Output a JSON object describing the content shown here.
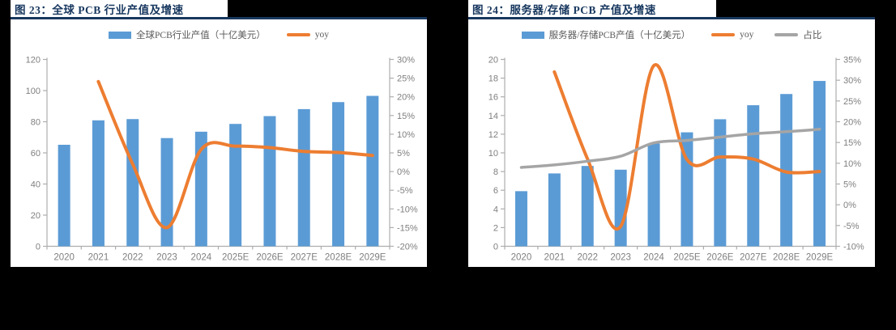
{
  "colors": {
    "bar_blue": "#5B9BD5",
    "line_orange": "#ED7D31",
    "line_gray": "#A5A5A5",
    "title_navy": "#17375E",
    "axis_text": "#7F7F7F",
    "axis_line": "#ADADAD",
    "page_backdrop": "#000000",
    "panel_bg": "#FFFFFF"
  },
  "chart_data": [
    {
      "type": "bar+line",
      "title": "图 23：全球 PCB 行业产值及增速",
      "categories": [
        "2020",
        "2021",
        "2022",
        "2023",
        "2024",
        "2025E",
        "2026E",
        "2027E",
        "2028E",
        "2029E"
      ],
      "series": [
        {
          "name": "全球PCB行业产值（十亿美元）",
          "type": "bar",
          "axis": "left",
          "color": "#5B9BD5",
          "values": [
            65.2,
            80.9,
            81.7,
            69.5,
            73.6,
            78.6,
            83.6,
            88.1,
            92.6,
            96.6
          ]
        },
        {
          "name": "yoy",
          "type": "line",
          "axis": "right",
          "color": "#ED7D31",
          "values": [
            null,
            24.1,
            2.0,
            -15.0,
            5.9,
            6.8,
            6.4,
            5.4,
            5.1,
            4.3
          ]
        }
      ],
      "left_axis": {
        "min": 0,
        "max": 120,
        "step": 20,
        "ticks": [
          "0",
          "20",
          "40",
          "60",
          "80",
          "100",
          "120"
        ]
      },
      "right_axis": {
        "min": -20,
        "max": 30,
        "step": 5,
        "ticks": [
          "-20%",
          "-15%",
          "-10%",
          "-5%",
          "0%",
          "5%",
          "10%",
          "15%",
          "20%",
          "25%",
          "30%"
        ]
      },
      "legend_position": "top",
      "grid": false
    },
    {
      "type": "bar+line",
      "title": "图 24：服务器/存储 PCB 产值及增速",
      "categories": [
        "2020",
        "2021",
        "2022",
        "2023",
        "2024",
        "2025E",
        "2026E",
        "2027E",
        "2028E",
        "2029E"
      ],
      "series": [
        {
          "name": "服务器/存储PCB产值（十亿美元）",
          "type": "bar",
          "axis": "left",
          "color": "#5B9BD5",
          "values": [
            5.9,
            7.8,
            8.6,
            8.2,
            11.0,
            12.2,
            13.6,
            15.1,
            16.3,
            17.7
          ]
        },
        {
          "name": "yoy",
          "type": "line",
          "axis": "right",
          "color": "#ED7D31",
          "values": [
            null,
            32.0,
            11.0,
            -5.2,
            33.5,
            10.9,
            11.5,
            11.0,
            7.9,
            8.0
          ]
        },
        {
          "name": "占比",
          "type": "line",
          "axis": "right",
          "color": "#A5A5A5",
          "values": [
            9.0,
            9.6,
            10.5,
            11.7,
            14.9,
            15.5,
            16.3,
            17.1,
            17.6,
            18.2
          ]
        }
      ],
      "left_axis": {
        "min": 0,
        "max": 20,
        "step": 2,
        "ticks": [
          "0",
          "2",
          "4",
          "6",
          "8",
          "10",
          "12",
          "14",
          "16",
          "18",
          "20"
        ]
      },
      "right_axis": {
        "min": -10,
        "max": 35,
        "step": 5,
        "ticks": [
          "-10%",
          "-5%",
          "0%",
          "5%",
          "10%",
          "15%",
          "20%",
          "25%",
          "30%",
          "35%"
        ]
      },
      "legend_position": "top",
      "grid": false
    }
  ]
}
